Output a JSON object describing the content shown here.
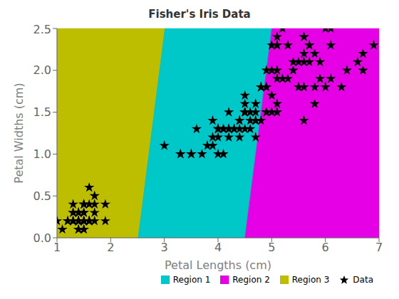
{
  "chart_data": {
    "type": "scatter",
    "title": "Fisher's Iris Data",
    "xlabel": "Petal Lengths (cm)",
    "ylabel": "Petal Widths (cm)",
    "xlim": [
      1,
      7
    ],
    "ylim": [
      0,
      2.5
    ],
    "xticks": [
      1,
      2,
      3,
      4,
      5,
      6,
      7
    ],
    "yticks": [
      {
        "value": 0,
        "label": "0.0"
      },
      0.5,
      {
        "value": 1,
        "label": "1.0"
      },
      1.5,
      {
        "value": 2,
        "label": "2.0"
      },
      2.5
    ],
    "grid": false,
    "legend": "lower right",
    "regions": [
      {
        "name": "Region 1",
        "color": "#00C8C8",
        "x": [
          2.5,
          4.5,
          5.0,
          3.0
        ],
        "y": [
          0,
          0,
          2.5,
          2.5
        ]
      },
      {
        "name": "Region 2",
        "color": "#E600E6",
        "x": [
          4.5,
          7,
          7,
          5.0
        ],
        "y": [
          0,
          0,
          2.5,
          2.5
        ]
      },
      {
        "name": "Region 3",
        "color": "#BEBE00",
        "x": [
          1,
          2.5,
          3.0,
          1
        ],
        "y": [
          0,
          0,
          2.5,
          2.5
        ]
      }
    ],
    "series": [
      {
        "name": "Data",
        "type": "scatter",
        "color": "black",
        "marker": "star",
        "x": [
          1.4,
          1.4,
          1.3,
          1.5,
          1.4,
          1.7,
          1.4,
          1.5,
          1.4,
          1.5,
          1.5,
          1.6,
          1.4,
          1.1,
          1.2,
          1.5,
          1.3,
          1.4,
          1.7,
          1.5,
          1.7,
          1.5,
          1.0,
          1.7,
          1.9,
          1.6,
          1.6,
          1.5,
          1.4,
          1.6,
          1.6,
          1.5,
          1.5,
          1.4,
          1.5,
          1.2,
          1.3,
          1.4,
          1.3,
          1.5,
          1.3,
          1.3,
          1.3,
          1.6,
          1.9,
          1.4,
          1.6,
          1.4,
          1.5,
          1.4,
          4.7,
          4.5,
          4.9,
          4.0,
          4.6,
          4.5,
          4.7,
          3.3,
          4.6,
          3.9,
          3.5,
          4.2,
          4.0,
          4.7,
          3.6,
          4.4,
          4.5,
          4.1,
          4.5,
          3.9,
          4.8,
          4.0,
          4.9,
          4.7,
          4.3,
          4.4,
          4.8,
          5.0,
          4.5,
          3.5,
          3.8,
          3.7,
          3.9,
          5.1,
          4.5,
          4.5,
          4.7,
          4.4,
          4.1,
          4.0,
          4.4,
          4.6,
          4.0,
          3.3,
          4.2,
          4.2,
          4.2,
          4.3,
          3.0,
          4.1,
          6.0,
          5.1,
          5.9,
          5.6,
          5.8,
          6.6,
          4.5,
          6.3,
          5.8,
          6.1,
          5.1,
          5.3,
          5.5,
          5.0,
          5.1,
          5.3,
          5.5,
          6.7,
          6.9,
          5.0,
          5.7,
          4.9,
          6.7,
          4.9,
          5.7,
          6.0,
          4.8,
          4.9,
          5.6,
          5.8,
          6.1,
          6.4,
          5.6,
          5.1,
          5.6,
          6.1,
          5.6,
          5.5,
          4.8,
          5.4,
          5.6,
          5.1,
          5.9,
          5.7,
          5.2,
          5.0,
          5.2,
          5.4,
          5.1
        ],
        "values": [
          0.2,
          0.2,
          0.2,
          0.2,
          0.2,
          0.4,
          0.3,
          0.2,
          0.2,
          0.1,
          0.2,
          0.2,
          0.1,
          0.1,
          0.2,
          0.4,
          0.4,
          0.3,
          0.3,
          0.3,
          0.2,
          0.4,
          0.2,
          0.5,
          0.2,
          0.2,
          0.4,
          0.2,
          0.2,
          0.2,
          0.2,
          0.4,
          0.1,
          0.2,
          0.2,
          0.2,
          0.2,
          0.1,
          0.2,
          0.3,
          0.3,
          0.3,
          0.2,
          0.6,
          0.4,
          0.3,
          0.2,
          0.2,
          0.2,
          0.2,
          1.4,
          1.5,
          1.5,
          1.3,
          1.5,
          1.3,
          1.6,
          1.0,
          1.3,
          1.4,
          1.0,
          1.5,
          1.0,
          1.4,
          1.3,
          1.4,
          1.5,
          1.0,
          1.5,
          1.1,
          1.8,
          1.3,
          1.5,
          1.2,
          1.3,
          1.4,
          1.4,
          1.7,
          1.5,
          1.0,
          1.1,
          1.0,
          1.2,
          1.6,
          1.5,
          1.6,
          1.5,
          1.3,
          1.3,
          1.3,
          1.2,
          1.4,
          1.2,
          1.0,
          1.3,
          1.2,
          1.3,
          1.3,
          1.1,
          1.3,
          2.5,
          1.9,
          2.1,
          1.8,
          2.2,
          2.1,
          1.7,
          1.8,
          1.8,
          2.5,
          2.0,
          1.9,
          2.1,
          2.0,
          2.4,
          2.3,
          1.8,
          2.2,
          2.3,
          1.5,
          2.3,
          2.0,
          2.0,
          1.8,
          2.1,
          1.8,
          1.8,
          1.8,
          2.1,
          1.6,
          1.9,
          2.0,
          2.2,
          1.5,
          1.4,
          2.3,
          2.4,
          1.8,
          1.8,
          2.1,
          2.4,
          2.3,
          1.9,
          2.3,
          2.5,
          2.3,
          1.9,
          2.0,
          2.3
        ]
      }
    ]
  }
}
